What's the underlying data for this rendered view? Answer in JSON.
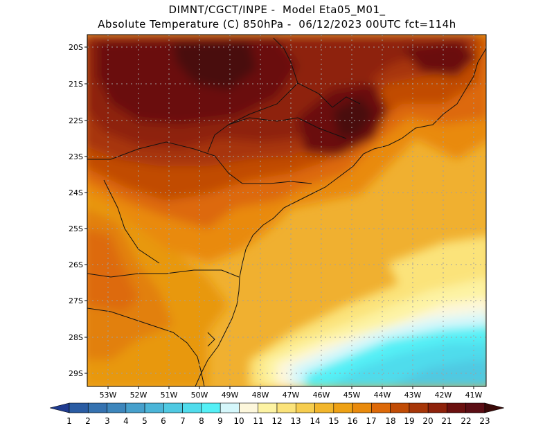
{
  "header": {
    "line1": "DIMNT/CGCT/INPE -  Model Eta05_M01_",
    "line2": "Absolute Temperature (C) 850hPa -  06/12/2023 00UTC fct=114h"
  },
  "map": {
    "lat_labels": [
      "20S",
      "21S",
      "22S",
      "23S",
      "24S",
      "25S",
      "26S",
      "27S",
      "28S",
      "29S"
    ],
    "lon_labels": [
      "53W",
      "52W",
      "51W",
      "50W",
      "49W",
      "48W",
      "47W",
      "46W",
      "45W",
      "44W",
      "43W",
      "42W",
      "41W"
    ]
  },
  "colorbar": {
    "labels": [
      "1",
      "2",
      "3",
      "4",
      "5",
      "6",
      "7",
      "8",
      "9",
      "10",
      "11",
      "12",
      "13",
      "14",
      "15",
      "16",
      "17",
      "18",
      "19",
      "20",
      "21",
      "22",
      "23"
    ],
    "colors": [
      "#1f3b8f",
      "#2a5ca3",
      "#3572b0",
      "#3d86bc",
      "#46a0cc",
      "#4bb5d8",
      "#4fc9e2",
      "#50dcec",
      "#55f0f6",
      "#d5f7fb",
      "#fdf7dc",
      "#fdf3a3",
      "#fbe37a",
      "#f6cd4f",
      "#f2b62c",
      "#eea114",
      "#e98a0c",
      "#dd6908",
      "#c14c05",
      "#a73608",
      "#8e220b",
      "#6b100f",
      "#5b0d14",
      "#3a0908"
    ]
  }
}
